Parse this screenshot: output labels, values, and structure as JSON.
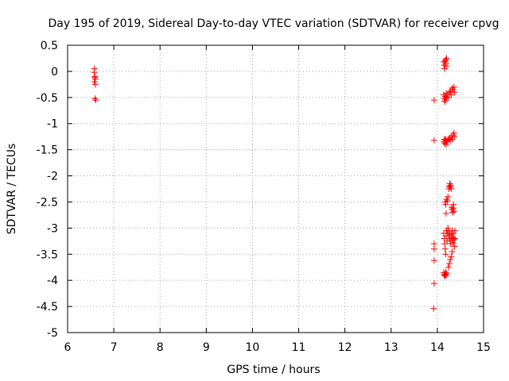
{
  "chart_data": {
    "type": "scatter",
    "title": "Day 195 of 2019, Sidereal Day-to-day VTEC variation (SDTVAR) for receiver cpvg",
    "xlabel": "GPS time / hours",
    "ylabel": "SDTVAR / TECUs",
    "xlim": [
      6,
      15
    ],
    "ylim": [
      -5,
      0.5
    ],
    "xticks": [
      6,
      7,
      8,
      9,
      10,
      11,
      12,
      13,
      14,
      15
    ],
    "xtick_labels": [
      "6",
      "7",
      "8",
      "9",
      "10",
      "11",
      "12",
      "13",
      "14",
      "15"
    ],
    "yticks": [
      0.5,
      0,
      -0.5,
      -1,
      -1.5,
      -2,
      -2.5,
      -3,
      -3.5,
      -4,
      -4.5,
      -5
    ],
    "ytick_labels": [
      "0.5",
      "0",
      "-0.5",
      "-1",
      "-1.5",
      "-2",
      "-2.5",
      "-3",
      "-3.5",
      "-4",
      "-4.5",
      "-5"
    ],
    "grid": true,
    "marker": "+",
    "marker_color": "#ff0000",
    "series": [
      {
        "name": "SDTVAR",
        "points": [
          [
            6.58,
            0.05
          ],
          [
            6.58,
            -0.02
          ],
          [
            6.59,
            -0.1
          ],
          [
            6.59,
            -0.12
          ],
          [
            6.6,
            -0.15
          ],
          [
            6.58,
            -0.2
          ],
          [
            6.6,
            -0.25
          ],
          [
            6.59,
            -0.52
          ],
          [
            6.61,
            -0.55
          ],
          [
            13.93,
            -0.55
          ],
          [
            13.93,
            -1.32
          ],
          [
            13.93,
            -3.3
          ],
          [
            13.93,
            -3.4
          ],
          [
            13.93,
            -3.62
          ],
          [
            13.93,
            -4.06
          ],
          [
            13.92,
            -4.54
          ],
          [
            14.14,
            0.18
          ],
          [
            14.15,
            0.12
          ],
          [
            14.16,
            0.05
          ],
          [
            14.17,
            0.2
          ],
          [
            14.18,
            0.22
          ],
          [
            14.19,
            0.15
          ],
          [
            14.2,
            0.25
          ],
          [
            14.19,
            0.1
          ],
          [
            14.14,
            -0.45
          ],
          [
            14.15,
            -0.52
          ],
          [
            14.16,
            -0.58
          ],
          [
            14.17,
            -0.48
          ],
          [
            14.18,
            -0.55
          ],
          [
            14.19,
            -0.42
          ],
          [
            14.2,
            -0.5
          ],
          [
            14.22,
            -0.45
          ],
          [
            14.24,
            -0.5
          ],
          [
            14.26,
            -0.4
          ],
          [
            14.28,
            -0.38
          ],
          [
            14.3,
            -0.45
          ],
          [
            14.32,
            -0.32
          ],
          [
            14.34,
            -0.35
          ],
          [
            14.36,
            -0.3
          ],
          [
            14.37,
            -0.4
          ],
          [
            14.14,
            -1.35
          ],
          [
            14.15,
            -1.3
          ],
          [
            14.16,
            -1.38
          ],
          [
            14.17,
            -1.32
          ],
          [
            14.18,
            -1.3
          ],
          [
            14.19,
            -1.4
          ],
          [
            14.2,
            -1.33
          ],
          [
            14.22,
            -1.35
          ],
          [
            14.24,
            -1.3
          ],
          [
            14.26,
            -1.28
          ],
          [
            14.28,
            -1.32
          ],
          [
            14.3,
            -1.25
          ],
          [
            14.32,
            -1.3
          ],
          [
            14.34,
            -1.22
          ],
          [
            14.36,
            -1.18
          ],
          [
            14.37,
            -1.25
          ],
          [
            14.17,
            -2.5
          ],
          [
            14.18,
            -2.55
          ],
          [
            14.19,
            -2.72
          ],
          [
            14.2,
            -2.45
          ],
          [
            14.22,
            -2.48
          ],
          [
            14.23,
            -2.4
          ],
          [
            14.25,
            -2.25
          ],
          [
            14.26,
            -2.2
          ],
          [
            14.27,
            -2.15
          ],
          [
            14.28,
            -2.22
          ],
          [
            14.29,
            -2.18
          ],
          [
            14.3,
            -2.25
          ],
          [
            14.31,
            -2.6
          ],
          [
            14.32,
            -2.65
          ],
          [
            14.33,
            -2.7
          ],
          [
            14.34,
            -2.62
          ],
          [
            14.35,
            -2.55
          ],
          [
            14.36,
            -2.68
          ],
          [
            14.14,
            -3.1
          ],
          [
            14.15,
            -3.2
          ],
          [
            14.16,
            -3.3
          ],
          [
            14.17,
            -3.4
          ],
          [
            14.18,
            -3.5
          ],
          [
            14.19,
            -3.15
          ],
          [
            14.2,
            -3.05
          ],
          [
            14.21,
            -3.25
          ],
          [
            14.22,
            -3.1
          ],
          [
            14.23,
            -3.0
          ],
          [
            14.24,
            -3.05
          ],
          [
            14.25,
            -3.15
          ],
          [
            14.26,
            -3.2
          ],
          [
            14.27,
            -3.1
          ],
          [
            14.28,
            -3.25
          ],
          [
            14.29,
            -3.3
          ],
          [
            14.3,
            -3.12
          ],
          [
            14.31,
            -3.2
          ],
          [
            14.32,
            -3.05
          ],
          [
            14.33,
            -3.18
          ],
          [
            14.34,
            -3.28
          ],
          [
            14.35,
            -3.1
          ],
          [
            14.36,
            -3.22
          ],
          [
            14.37,
            -3.35
          ],
          [
            14.38,
            -3.05
          ],
          [
            14.38,
            -3.2
          ],
          [
            14.14,
            -3.85
          ],
          [
            14.15,
            -3.9
          ],
          [
            14.16,
            -3.88
          ],
          [
            14.17,
            -3.92
          ],
          [
            14.18,
            -3.85
          ],
          [
            14.19,
            -3.9
          ],
          [
            14.2,
            -3.87
          ],
          [
            14.24,
            -3.75
          ],
          [
            14.26,
            -3.68
          ],
          [
            14.28,
            -3.6
          ],
          [
            14.3,
            -3.55
          ],
          [
            14.32,
            -3.45
          ]
        ]
      }
    ]
  }
}
